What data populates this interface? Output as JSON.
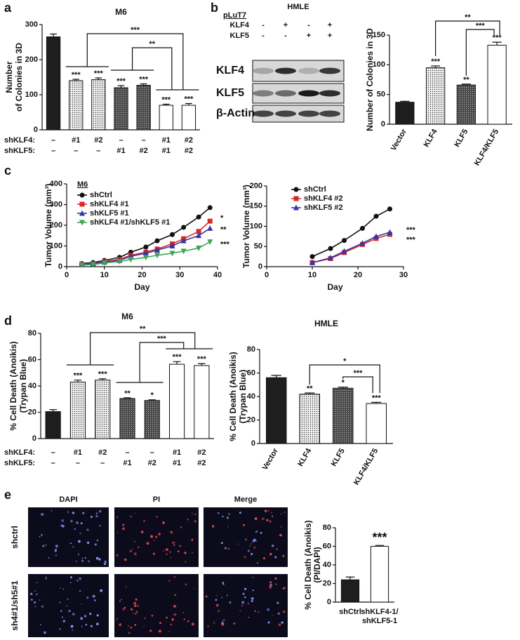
{
  "panel_labels": [
    "a",
    "b",
    "c",
    "d",
    "e"
  ],
  "blot": {
    "title": "HMLE",
    "vector": "pLuT7",
    "conditions": [
      {
        "label": "KLF4",
        "signs": [
          "-",
          "+",
          "-",
          "+"
        ]
      },
      {
        "label": "KLF5",
        "signs": [
          "-",
          "-",
          "+",
          "+"
        ]
      }
    ],
    "bands": [
      "KLF4",
      "KLF5",
      "β-Actin"
    ]
  },
  "images": {
    "columns": [
      "DAPI",
      "PI",
      "Merge"
    ],
    "rows": [
      "shctrl",
      "sh4#1/sh5#1"
    ]
  },
  "chart_data": [
    {
      "type": "bar",
      "title": "M6",
      "ylabel": [
        "Number",
        "of Colonies in 3D"
      ],
      "values": [
        265,
        140,
        143,
        120,
        127,
        70,
        70
      ],
      "errors": [
        8,
        4,
        5,
        6,
        4,
        3,
        5
      ],
      "significance": [
        null,
        "***",
        "***",
        "***",
        "***",
        "***",
        "***"
      ],
      "fills": [
        "solid",
        "dots",
        "dots",
        "hatch",
        "hatch",
        "white",
        "white"
      ],
      "ylim": [
        0,
        300
      ],
      "yticks": [
        0,
        100,
        200,
        300
      ],
      "brackets": [
        "***",
        "**"
      ],
      "row_labels": [
        "shKLF4:",
        "shKLF5:"
      ],
      "rows": [
        [
          "–",
          "#1",
          "#2",
          "–",
          "–",
          "#1",
          "#2"
        ],
        [
          "–",
          "–",
          "–",
          "#1",
          "#2",
          "#1",
          "#2"
        ]
      ]
    },
    {
      "type": "bar",
      "ylabel": "Number of Colonies in 3D",
      "categories": [
        "Vector",
        "KLF4",
        "KLF5",
        "KLF4/KLF5"
      ],
      "values": [
        37,
        95,
        66,
        133
      ],
      "errors": [
        1.5,
        3,
        1.5,
        5
      ],
      "significance": [
        null,
        "***",
        "**",
        "***"
      ],
      "fills": [
        "solid",
        "dots",
        "hatch",
        "white"
      ],
      "ylim": [
        0,
        150
      ],
      "yticks": [
        0,
        50,
        100,
        150
      ],
      "brackets": [
        "**",
        "***"
      ]
    },
    {
      "type": "line",
      "ylabel": "Tumor Volume (mm³)",
      "xlabel": "Day",
      "legend_title": "M6",
      "x": [
        4,
        7,
        10,
        14,
        17,
        21,
        24,
        28,
        31,
        35,
        38
      ],
      "series": [
        {
          "name": "shCtrl",
          "color": "#111111",
          "marker": "circle",
          "values": [
            15,
            20,
            30,
            45,
            70,
            95,
            125,
            155,
            190,
            240,
            285
          ]
        },
        {
          "name": "shKLF4 #1",
          "color": "#d42a2a",
          "marker": "square",
          "values": [
            12,
            15,
            25,
            35,
            55,
            70,
            85,
            110,
            135,
            170,
            220
          ]
        },
        {
          "name": "shKLF5 #1",
          "color": "#3535a8",
          "marker": "triangle",
          "values": [
            10,
            14,
            22,
            30,
            50,
            65,
            80,
            100,
            125,
            150,
            185
          ]
        },
        {
          "name": "shKLF4 #1/shKLF5 #1",
          "color": "#3fa655",
          "marker": "triangle-down",
          "values": [
            8,
            10,
            18,
            25,
            35,
            45,
            55,
            65,
            75,
            90,
            120
          ]
        }
      ],
      "end_labels": [
        null,
        "*",
        "**",
        "***"
      ],
      "xlim": [
        0,
        40
      ],
      "xticks": [
        0,
        10,
        20,
        30,
        40
      ],
      "ylim": [
        0,
        400
      ],
      "yticks": [
        0,
        100,
        200,
        300,
        400
      ]
    },
    {
      "type": "line",
      "ylabel": "Tumor Volume (mm³)",
      "xlabel": "Day",
      "x": [
        10,
        14,
        17,
        21,
        24,
        27
      ],
      "series": [
        {
          "name": "shCtrl",
          "color": "#111111",
          "marker": "circle",
          "values": [
            25,
            45,
            65,
            95,
            125,
            143
          ]
        },
        {
          "name": "shKLF4 #2",
          "color": "#d42a2a",
          "marker": "square",
          "values": [
            10,
            20,
            35,
            55,
            70,
            80
          ]
        },
        {
          "name": "shKLF5 #2",
          "color": "#3535a8",
          "marker": "triangle",
          "values": [
            10,
            22,
            38,
            58,
            75,
            85
          ]
        }
      ],
      "end_labels": [
        null,
        "***",
        "***"
      ],
      "xlim": [
        0,
        30
      ],
      "xticks": [
        0,
        10,
        20,
        30
      ],
      "ylim": [
        0,
        200
      ],
      "yticks": [
        0,
        50,
        100,
        150,
        200
      ]
    },
    {
      "type": "bar",
      "title": "M6",
      "ylabel": [
        "% Cell Death (Anoikis)",
        "(Trypan Blue)"
      ],
      "values": [
        20.5,
        43,
        44.5,
        30.5,
        29,
        56.5,
        55.5
      ],
      "errors": [
        1.5,
        1.5,
        1,
        0.5,
        0.5,
        2,
        1.5
      ],
      "significance": [
        null,
        "***",
        "***",
        "**",
        "*",
        "***",
        "***"
      ],
      "fills": [
        "solid",
        "dots",
        "dots",
        "hatch",
        "hatch",
        "white",
        "white"
      ],
      "ylim": [
        0,
        80
      ],
      "yticks": [
        0,
        20,
        40,
        60,
        80
      ],
      "brackets": [
        "**",
        "***"
      ],
      "row_labels": [
        "shKLF4:",
        "shKLF5:"
      ],
      "rows": [
        [
          "–",
          "#1",
          "#2",
          "–",
          "–",
          "#1",
          "#2"
        ],
        [
          "–",
          "–",
          "–",
          "#1",
          "#2",
          "#1",
          "#2"
        ]
      ]
    },
    {
      "type": "bar",
      "title": "HMLE",
      "ylabel": [
        "% Cell Death (Anoikis)",
        "(Trypan Blue)"
      ],
      "categories": [
        "Vector",
        "KLF4",
        "KLF5",
        "KLF4/KLF5"
      ],
      "values": [
        56,
        42,
        47,
        34
      ],
      "errors": [
        2,
        1,
        1,
        1
      ],
      "significance": [
        null,
        "**",
        "*",
        "***"
      ],
      "fills": [
        "solid",
        "dots",
        "hatch",
        "white"
      ],
      "ylim": [
        0,
        80
      ],
      "yticks": [
        0,
        20,
        40,
        60,
        80
      ],
      "brackets": [
        "*",
        "***"
      ]
    },
    {
      "type": "bar",
      "ylabel": [
        "% Cell Death (Anoikis)",
        "(PI/DAPI)"
      ],
      "categories": [
        [
          "shCtrl"
        ],
        [
          "shKLF4-1/",
          "shKLF5-1"
        ]
      ],
      "values": [
        24,
        60
      ],
      "errors": [
        3,
        1
      ],
      "significance": [
        null,
        "***"
      ],
      "fills": [
        "solid",
        "white"
      ],
      "ylim": [
        0,
        80
      ],
      "yticks": [
        0,
        20,
        40,
        60,
        80
      ]
    }
  ]
}
